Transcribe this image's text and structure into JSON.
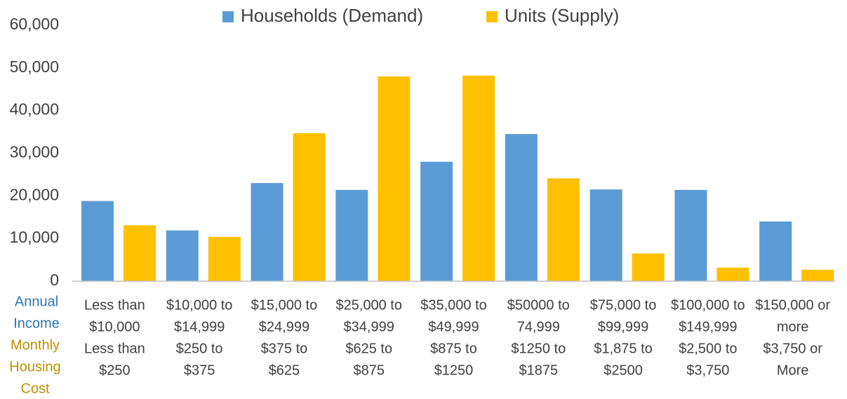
{
  "chart_data": {
    "type": "bar",
    "categories": [
      [
        "Less than",
        "$10,000",
        "Less than",
        "$250"
      ],
      [
        "$10,000 to",
        "$14,999",
        "$250 to",
        "$375"
      ],
      [
        "$15,000 to",
        "$24,999",
        "$375 to",
        "$625"
      ],
      [
        "$25,000 to",
        "$34,999",
        "$625 to",
        "$875"
      ],
      [
        "$35,000 to",
        "$49,999",
        "$875 to",
        "$1250"
      ],
      [
        "$50000 to",
        "74,999",
        "$1250 to",
        "$1875"
      ],
      [
        "$75,000 to",
        "$99,999",
        "$1,875 to",
        "$2500"
      ],
      [
        "$100,000 to",
        "$149,999",
        "$2,500 to",
        "$3,750"
      ],
      [
        "$150,000 or",
        "more",
        "$3,750 or",
        "More"
      ]
    ],
    "row_labels": [
      {
        "lines": [
          "Annual",
          "Income"
        ],
        "color": "#2e75b6"
      },
      {
        "lines": [
          "Monthly",
          "Housing",
          "Cost"
        ],
        "color": "#bf9000"
      }
    ],
    "series": [
      {
        "name": "Households (Demand)",
        "color": "#5b9bd5",
        "values": [
          18800,
          11900,
          23000,
          21400,
          28000,
          34500,
          21500,
          21400,
          14000
        ]
      },
      {
        "name": "Units (Supply)",
        "color": "#ffc000",
        "values": [
          13100,
          10400,
          34700,
          48000,
          48200,
          24100,
          6500,
          3200,
          2700
        ]
      }
    ],
    "ylim": [
      0,
      60000
    ],
    "yticks": [
      0,
      {
        "value": 10000,
        "label": "10,000"
      },
      {
        "value": 20000,
        "label": "20,000"
      },
      {
        "value": 30000,
        "label": "30,000"
      },
      {
        "value": 40000,
        "label": "40,000"
      },
      {
        "value": 50000,
        "label": "50,000"
      },
      {
        "value": 60000,
        "label": "60,000"
      }
    ],
    "grid": false,
    "legend": "top"
  }
}
